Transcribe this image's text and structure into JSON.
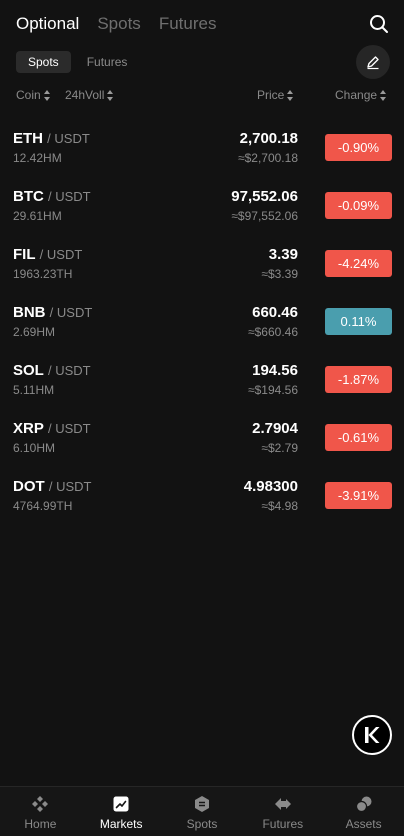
{
  "top_tabs": [
    {
      "label": "Optional",
      "active": true
    },
    {
      "label": "Spots",
      "active": false
    },
    {
      "label": "Futures",
      "active": false
    }
  ],
  "sub_tabs": [
    {
      "label": "Spots",
      "active": true
    },
    {
      "label": "Futures",
      "active": false
    }
  ],
  "columns": {
    "coin": "Coin",
    "volume": "24hVoll",
    "price": "Price",
    "change": "Change"
  },
  "rows": [
    {
      "base": "ETH",
      "quote": "/ USDT",
      "volume": "12.42HM",
      "price": "2,700.18",
      "fiat": "≈$2,700.18",
      "change": "-0.90%",
      "direction": "down"
    },
    {
      "base": "BTC",
      "quote": "/ USDT",
      "volume": "29.61HM",
      "price": "97,552.06",
      "fiat": "≈$97,552.06",
      "change": "-0.09%",
      "direction": "down"
    },
    {
      "base": "FIL",
      "quote": "/ USDT",
      "volume": "1963.23TH",
      "price": "3.39",
      "fiat": "≈$3.39",
      "change": "-4.24%",
      "direction": "down"
    },
    {
      "base": "BNB",
      "quote": "/ USDT",
      "volume": "2.69HM",
      "price": "660.46",
      "fiat": "≈$660.46",
      "change": "0.11%",
      "direction": "up"
    },
    {
      "base": "SOL",
      "quote": "/ USDT",
      "volume": "5.11HM",
      "price": "194.56",
      "fiat": "≈$194.56",
      "change": "-1.87%",
      "direction": "down"
    },
    {
      "base": "XRP",
      "quote": "/ USDT",
      "volume": "6.10HM",
      "price": "2.7904",
      "fiat": "≈$2.79",
      "change": "-0.61%",
      "direction": "down"
    },
    {
      "base": "DOT",
      "quote": "/ USDT",
      "volume": "4764.99TH",
      "price": "4.98300",
      "fiat": "≈$4.98",
      "change": "-3.91%",
      "direction": "down"
    }
  ],
  "bottom_nav": [
    {
      "label": "Home",
      "icon": "home-diamonds-icon",
      "active": false
    },
    {
      "label": "Markets",
      "icon": "markets-chart-icon",
      "active": true
    },
    {
      "label": "Spots",
      "icon": "spots-coin-icon",
      "active": false
    },
    {
      "label": "Futures",
      "icon": "futures-arrow-icon",
      "active": false
    },
    {
      "label": "Assets",
      "icon": "assets-coins-icon",
      "active": false
    }
  ],
  "colors": {
    "background": "#121212",
    "down": "#f0564a",
    "up": "#4a9eae",
    "muted_text": "#8a8a8a"
  },
  "icons": {
    "search": "search-icon",
    "edit": "edit-pen-icon",
    "float": "k-logo-icon"
  }
}
